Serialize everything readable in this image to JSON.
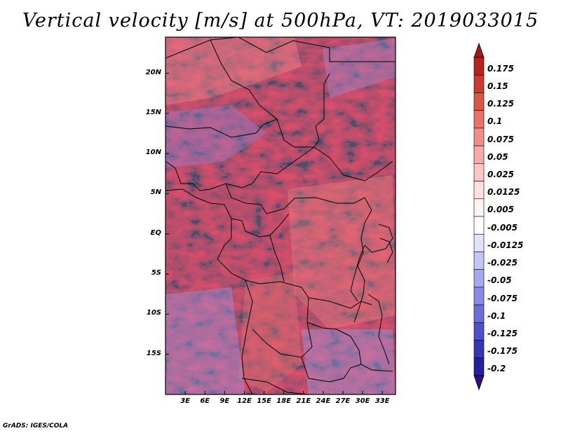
{
  "title": "Vertical velocity [m/s] at 500hPa, VT: 2019033015",
  "credit": "GrADS: IGES/COLA",
  "lat_ticks": [
    {
      "label": "20N",
      "lat": 20
    },
    {
      "label": "15N",
      "lat": 15
    },
    {
      "label": "10N",
      "lat": 10
    },
    {
      "label": "5N",
      "lat": 5
    },
    {
      "label": "EQ",
      "lat": 0
    },
    {
      "label": "5S",
      "lat": -5
    },
    {
      "label": "10S",
      "lat": -10
    },
    {
      "label": "15S",
      "lat": -15
    }
  ],
  "lon_ticks": [
    {
      "label": "3E",
      "lon": 3
    },
    {
      "label": "6E",
      "lon": 6
    },
    {
      "label": "9E",
      "lon": 9
    },
    {
      "label": "12E",
      "lon": 12
    },
    {
      "label": "15E",
      "lon": 15
    },
    {
      "label": "18E",
      "lon": 18
    },
    {
      "label": "21E",
      "lon": 21
    },
    {
      "label": "24E",
      "lon": 24
    },
    {
      "label": "27E",
      "lon": 27
    },
    {
      "label": "30E",
      "lon": 30
    },
    {
      "label": "33E",
      "lon": 33
    }
  ],
  "map_extent": {
    "lon_min": 0,
    "lon_max": 35,
    "lat_min": -20,
    "lat_max": 24.5
  },
  "colorbar": {
    "top_arrow_color": "#a01818",
    "bottom_arrow_color": "#2a1088",
    "levels": [
      {
        "label": "0.175",
        "color": "#b5221f"
      },
      {
        "label": "0.15",
        "color": "#c93a30"
      },
      {
        "label": "0.125",
        "color": "#db5548"
      },
      {
        "label": "0.1",
        "color": "#e8726a"
      },
      {
        "label": "0.075",
        "color": "#f08e88"
      },
      {
        "label": "0.05",
        "color": "#f6aca8"
      },
      {
        "label": "0.025",
        "color": "#fbc7c5"
      },
      {
        "label": "0.0125",
        "color": "#fde0df"
      },
      {
        "label": "0.005",
        "color": "#fff4f3"
      },
      {
        "label": "-0.005",
        "color": "#ffffff"
      },
      {
        "label": "-0.0125",
        "color": "#e2e2fb"
      },
      {
        "label": "-0.025",
        "color": "#c4c4f6"
      },
      {
        "label": "-0.05",
        "color": "#a7a7f0"
      },
      {
        "label": "-0.075",
        "color": "#8a8ae6"
      },
      {
        "label": "-0.1",
        "color": "#6c6cda"
      },
      {
        "label": "-0.125",
        "color": "#4f4fcb"
      },
      {
        "label": "-0.175",
        "color": "#3535b6"
      },
      {
        "label": "-0.2",
        "color": "#24209c"
      }
    ]
  }
}
